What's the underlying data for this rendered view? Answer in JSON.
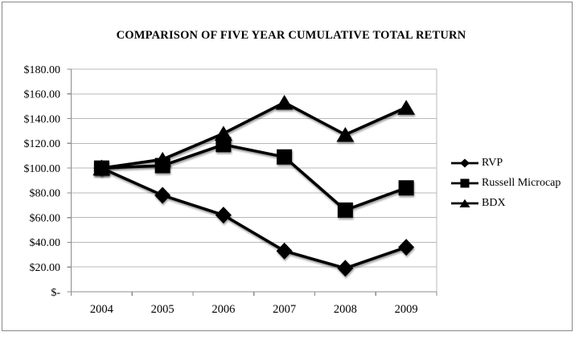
{
  "chart_data": {
    "type": "line",
    "title": "COMPARISON OF FIVE YEAR CUMULATIVE TOTAL RETURN",
    "categories": [
      "2004",
      "2005",
      "2006",
      "2007",
      "2008",
      "2009"
    ],
    "series": [
      {
        "name": "RVP",
        "marker": "diamond",
        "values": [
          100,
          78,
          62,
          33,
          19,
          36
        ]
      },
      {
        "name": "Russell Microcap",
        "marker": "square",
        "values": [
          100,
          102,
          119,
          109,
          66,
          84
        ]
      },
      {
        "name": "BDX",
        "marker": "triangle",
        "values": [
          100,
          107,
          128,
          153,
          127,
          149
        ]
      }
    ],
    "ylim": [
      0,
      180
    ],
    "y_tick_step": 20,
    "y_tick_labels": [
      "$-",
      "$20.00",
      "$40.00",
      "$60.00",
      "$80.00",
      "$100.00",
      "$120.00",
      "$140.00",
      "$160.00",
      "$180.00"
    ],
    "grid": "horizontal",
    "legend_position": "right",
    "colors": {
      "series": "#000000",
      "gridline": "#b8b8b8",
      "axis": "#8c8c8c",
      "text": "#000000",
      "frame_border": "#878787",
      "background": "#ffffff"
    }
  }
}
